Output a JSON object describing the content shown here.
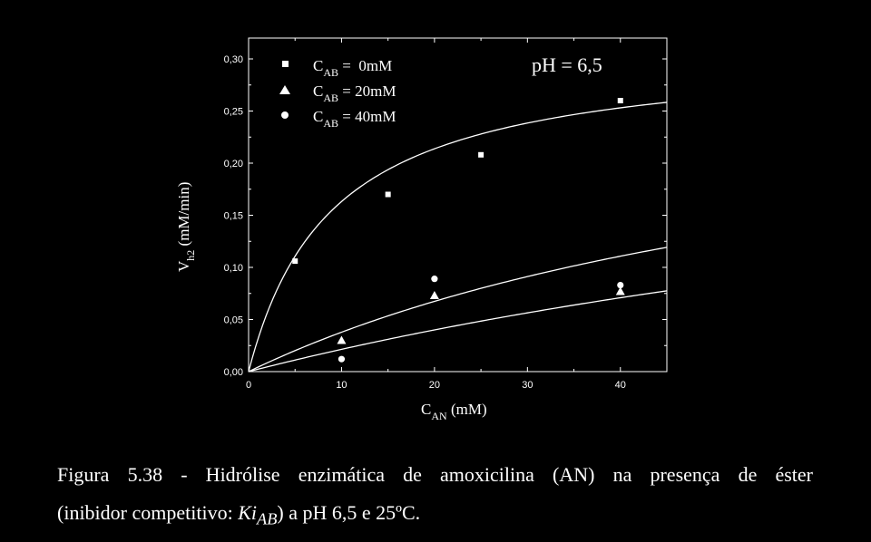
{
  "chart_data": {
    "type": "scatter",
    "xlim": [
      0,
      45
    ],
    "ylim": [
      0,
      0.32
    ],
    "x_ticks": [
      0,
      10,
      20,
      30,
      40
    ],
    "x_tick_labels": [
      "0",
      "10",
      "20",
      "30",
      "40"
    ],
    "y_ticks": [
      0,
      0.05,
      0.1,
      0.15,
      0.2,
      0.25,
      0.3
    ],
    "y_tick_labels": [
      "0,00",
      "0,05",
      "0,10",
      "0,15",
      "0,20",
      "0,25",
      "0,30"
    ],
    "xlabel": {
      "main": "C",
      "sub": "AN",
      "rest": " (mM)"
    },
    "ylabel": {
      "main": "V",
      "sub": "h2",
      "rest": " (mM/min)"
    },
    "annotation": "pH = 6,5",
    "grid": false,
    "legend_position": "top-left",
    "series": [
      {
        "marker": "square",
        "legend_main": "C",
        "legend_sub": "AB",
        "legend_rest": " =  0mM",
        "x": [
          5,
          15,
          25,
          40
        ],
        "y": [
          0.106,
          0.17,
          0.208,
          0.26
        ]
      },
      {
        "marker": "triangle",
        "legend_main": "C",
        "legend_sub": "AB",
        "legend_rest": " = 20mM",
        "x": [
          10,
          20,
          40
        ],
        "y": [
          0.03,
          0.073,
          0.077
        ]
      },
      {
        "marker": "circle",
        "legend_main": "C",
        "legend_sub": "AB",
        "legend_rest": " = 40mM",
        "x": [
          10,
          20,
          40
        ],
        "y": [
          0.012,
          0.089,
          0.083
        ]
      }
    ],
    "fit_curves": [
      {
        "model": "michaelis-menten",
        "vmax": 0.31,
        "km": 9.0,
        "x_range": [
          0,
          45
        ]
      },
      {
        "model": "michaelis-menten",
        "vmax": 0.31,
        "km": 72.0,
        "x_range": [
          0,
          45
        ]
      },
      {
        "model": "michaelis-menten",
        "vmax": 0.31,
        "km": 135.0,
        "x_range": [
          0,
          45
        ]
      }
    ]
  },
  "caption": {
    "line1": "Figura 5.38 - Hidrólise enzimática de amoxicilina (AN) na presença de éster",
    "line2_a": "(inibidor competitivo: ",
    "line2_k": "Ki",
    "line2_sub": "AB",
    "line2_b": ") a pH 6,5 e 25ºC."
  }
}
